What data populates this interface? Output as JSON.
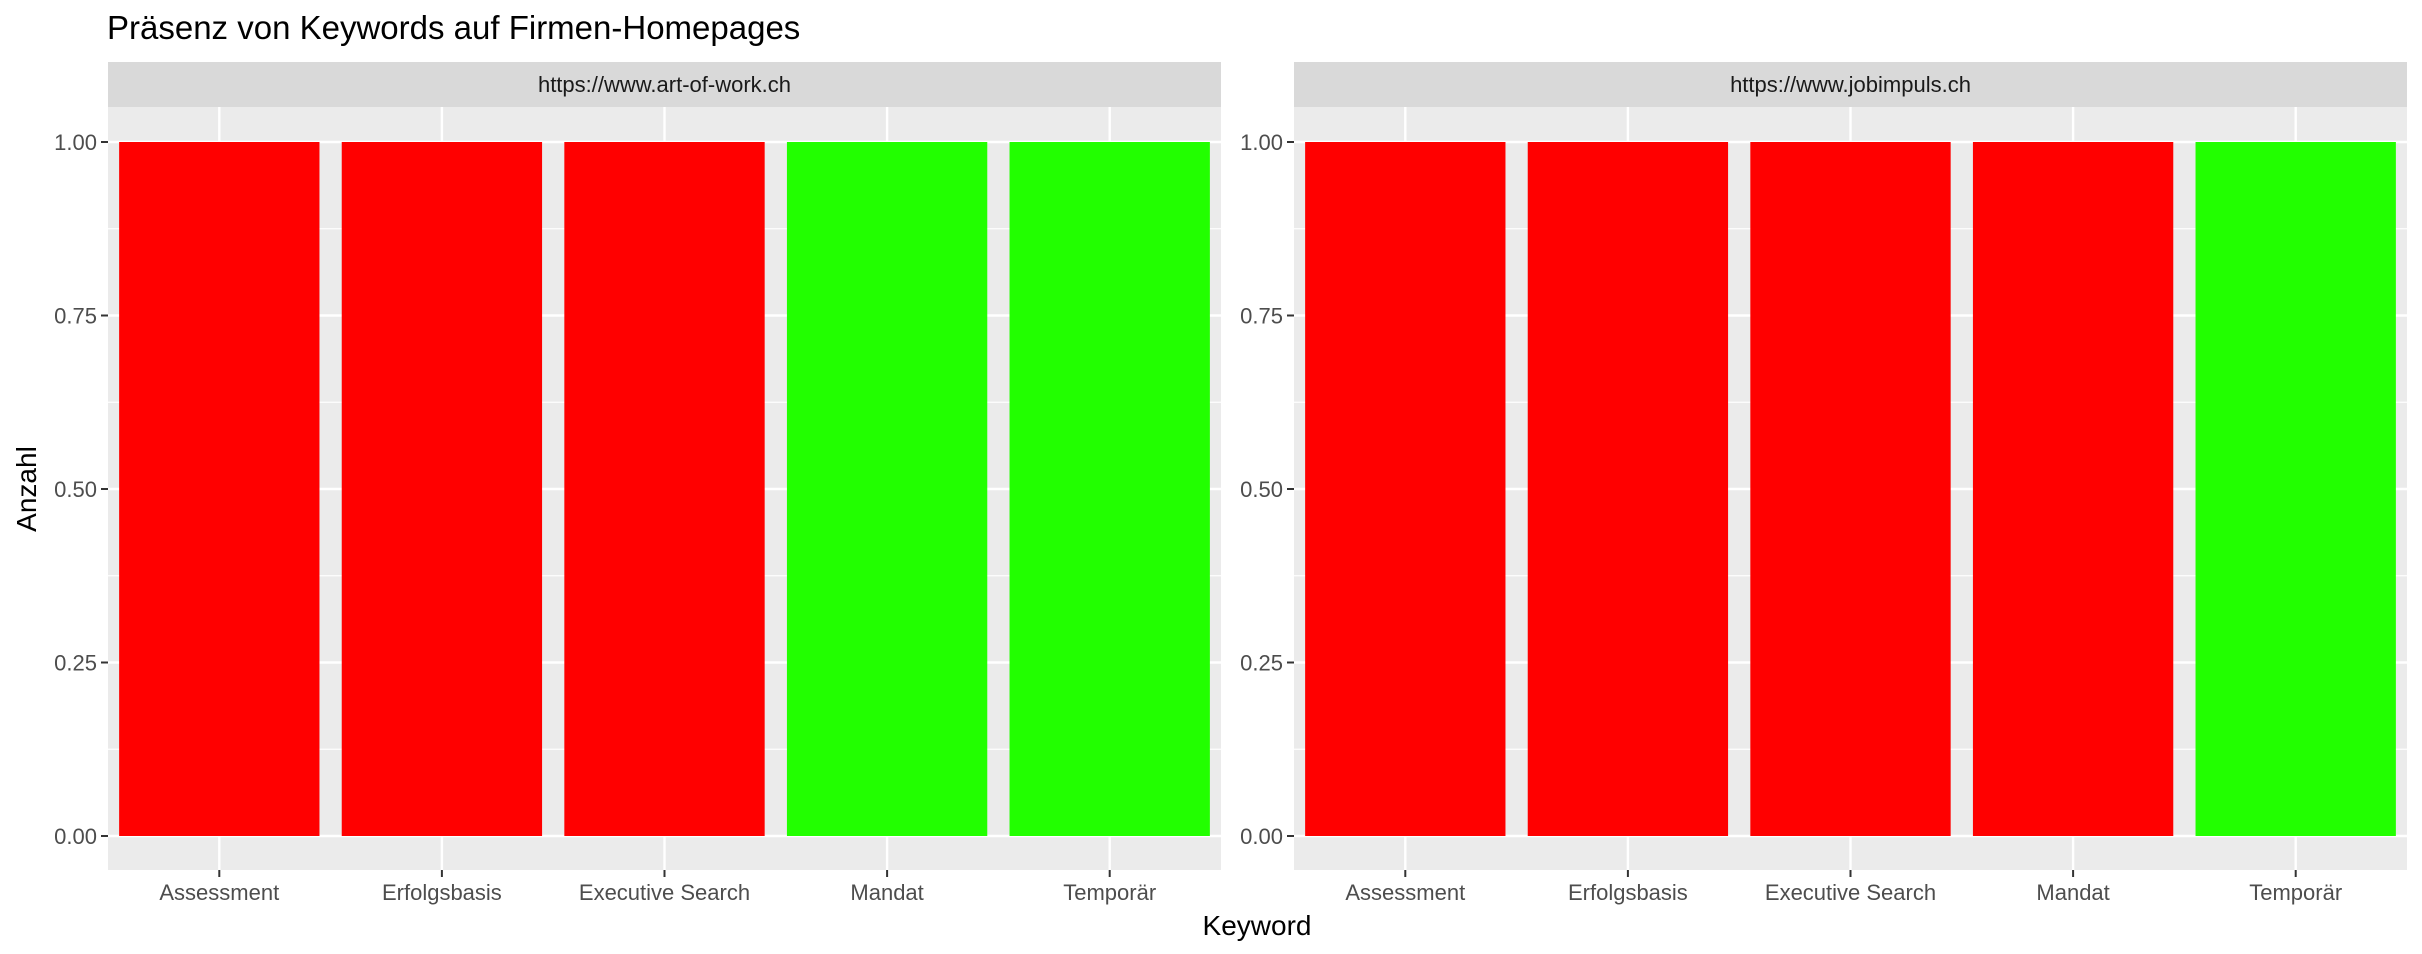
{
  "chart_data": {
    "type": "bar",
    "title": "Präsenz von Keywords auf Firmen-Homepages",
    "xlabel": "Keyword",
    "ylabel": "Anzahl",
    "ylim": [
      0,
      1
    ],
    "yticks": [
      "0.00",
      "0.25",
      "0.50",
      "0.75",
      "1.00"
    ],
    "ytick_values": [
      0,
      0.25,
      0.5,
      0.75,
      1.0
    ],
    "categories": [
      "Assessment",
      "Erfolgsbasis",
      "Executive Search",
      "Mandat",
      "Temporär"
    ],
    "grid": true,
    "legend": "none",
    "colors": {
      "red": "#ff0000",
      "green": "#22ff00"
    },
    "panels": [
      {
        "name": "https://www.art-of-work.ch",
        "values": [
          1,
          1,
          1,
          1,
          1
        ],
        "bar_colors": [
          "#ff0000",
          "#ff0000",
          "#ff0000",
          "#22ff00",
          "#22ff00"
        ]
      },
      {
        "name": "https://www.jobimpuls.ch",
        "values": [
          1,
          1,
          1,
          1,
          1
        ],
        "bar_colors": [
          "#ff0000",
          "#ff0000",
          "#ff0000",
          "#ff0000",
          "#22ff00"
        ]
      }
    ]
  }
}
